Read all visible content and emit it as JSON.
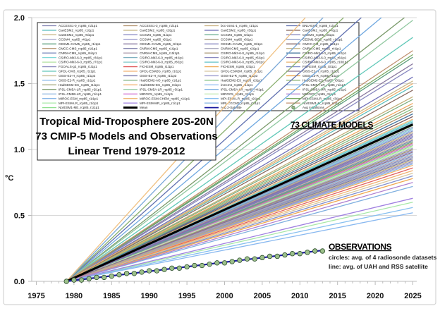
{
  "chart_data": {
    "type": "line",
    "title_lines": [
      "Tropical Mid-Troposphere 20S-20N",
      "73 CMIP-5 Models and Observations",
      "Linear Trend 1979-2012"
    ],
    "ylabel": "°C",
    "xlabel": "",
    "xlim": [
      1975,
      2025
    ],
    "ylim": [
      0.0,
      2.0
    ],
    "x_ticks": [
      "1975",
      "1980",
      "1985",
      "1990",
      "1995",
      "2000",
      "2005",
      "2010",
      "2015",
      "2020",
      "2025"
    ],
    "y_ticks": [
      "0.0",
      "0.5",
      "1.0",
      "1.5",
      "2.0"
    ],
    "grid": "horizontal",
    "legend_placement": "top-left",
    "annotations": {
      "models_label": "73 CLIMATE MODELS",
      "obs_title": "OBSERVATIONS",
      "obs_line1": "circles: avg. of 4 radiosonde datasets",
      "obs_line2": "line: avg. of UAH and RSS satellite"
    },
    "model_start_year": 1979,
    "model_end_year": 2025,
    "models": [
      {
        "name": "ACCESS1-0_rcp85_r1i1p1",
        "color": "#7f7fb0",
        "y_2025": 1.12
      },
      {
        "name": "CanESM2_rcp85_r1i1p1",
        "color": "#5fbfbf",
        "y_2025": 1.48
      },
      {
        "name": "CanESM2_rcp85_r5i1p1",
        "color": "#c3b07a",
        "y_2025": 1.4
      },
      {
        "name": "CCSM4_rcp85_r4i1p1",
        "color": "#a0a0c8",
        "y_2025": 1.01
      },
      {
        "name": "CESM1-CAM5_rcp85_r1i1p1",
        "color": "#5fa07f",
        "y_2025": 1.7
      },
      {
        "name": "CMCC-CMS_rcp85_r1i1p1",
        "color": "#b08f6a",
        "y_2025": 1.05
      },
      {
        "name": "CNRM-CM5_rcp85_r6i1p1",
        "color": "#7f8fc0",
        "y_2025": 0.95
      },
      {
        "name": "CSIRO-Mk3-6-0_rcp85_r3i1p1",
        "color": "#80d8d8",
        "y_2025": 1.22
      },
      {
        "name": "CSIRO-Mk3-6-0_rcp85_r7i1p1",
        "color": "#b0e0a0",
        "y_2025": 1.18
      },
      {
        "name": "FGOALS-g2_rcp85_r1i1p1",
        "color": "#9090c0",
        "y_2025": 0.91
      },
      {
        "name": "GFDL-CM3_rcp85_r1i1p1",
        "color": "#60c8b8",
        "y_2025": 1.85
      },
      {
        "name": "GISS-E2-H_rcp85_r1i1p2",
        "color": "#c8c09a",
        "y_2025": 1.08
      },
      {
        "name": "GISS-E2-R_rcp85_r1i1p1",
        "color": "#88b8e8",
        "y_2025": 0.89
      },
      {
        "name": "HadGEM2-ES_rcp85_r1i1p1",
        "color": "#9aa070",
        "y_2025": 1.33
      },
      {
        "name": "IPSL-CM5A-LR_rcp85_r2i1p1",
        "color": "#7a9a6a",
        "y_2025": 2.05
      },
      {
        "name": "IPSL-CM5B-LR_rcp85_r1i1p1",
        "color": "#90b8e0",
        "y_2025": 0.97
      },
      {
        "name": "MIROC-ESM_rcp85_r1i1p1",
        "color": "#8ab8e8",
        "y_2025": 1.15
      },
      {
        "name": "MPI-ESM-LR_rcp85_r1i1p1",
        "color": "#a8e8a8",
        "y_2025": 0.6
      },
      {
        "name": "NorESM1-ME_rcp85_r1i1p1",
        "color": "#90e090",
        "y_2025": 1.03
      },
      {
        "name": "ACCESS1-3_rcp85_r1i1p1",
        "color": "#b08f6a",
        "y_2025": 1.29
      },
      {
        "name": "CanESM2_rcp85_r2i1p1",
        "color": "#c8b888",
        "y_2025": 1.52
      },
      {
        "name": "CCSM4_rcp85_r1i1p1",
        "color": "#8080c0",
        "y_2025": 1.1
      },
      {
        "name": "CCSM4_rcp85_r5i1p1",
        "color": "#9090c8",
        "y_2025": 0.99
      },
      {
        "name": "CESM1-CAM5_rcp85_r2i1p1",
        "color": "#8a7aa0",
        "y_2025": 1.65
      },
      {
        "name": "CNRM-CM5_rcp85_r1i1p1",
        "color": "#7a7aa8",
        "y_2025": 0.93
      },
      {
        "name": "CNRM-CM5_rcp85_r10i1p1",
        "color": "#b0a0b0",
        "y_2025": 0.96
      },
      {
        "name": "CSIRO-Mk3-6-0_rcp85_r4i1p1",
        "color": "#7fb0c0",
        "y_2025": 1.2
      },
      {
        "name": "CSIRO-Mk3-6-0_rcp85_r8i1p1",
        "color": "#7fc8c8",
        "y_2025": 1.16
      },
      {
        "name": "FIO-ESM_rcp85_r1i1p1",
        "color": "#e06060",
        "y_2025": 0.86
      },
      {
        "name": "GFDL-ESM2G_rcp85_r1i1p1",
        "color": "#f0b070",
        "y_2025": 0.84
      },
      {
        "name": "GISS-E2-H_rcp85_r1i1p3",
        "color": "#8080b0",
        "y_2025": 1.07
      },
      {
        "name": "HadGEM2-AO_rcp85_r1i1p1",
        "color": "#80b080",
        "y_2025": 1.38
      },
      {
        "name": "HadGEM2-ES_rcp85_r4i1p1",
        "color": "#f0a860",
        "y_2025": 1.35
      },
      {
        "name": "IPSL-CM5A-LR_rcp85_r3i1p1",
        "color": "#90c8a0",
        "y_2025": 1.98
      },
      {
        "name": "MIROC5_rcp85_r1i1p1",
        "color": "#d070d0",
        "y_2025": 1.04
      },
      {
        "name": "MIROC-ESM-CHEM_rcp85_r1i1p1",
        "color": "#f0b878",
        "y_2025": 1.23
      },
      {
        "name": "MPI-ESM-MR_rcp85_r1i1p1",
        "color": "#a080e0",
        "y_2025": 0.63
      },
      {
        "name": "bcc-csm1-1_rcp85_r1i1p1",
        "color": "#c8b080",
        "y_2025": 1.13
      },
      {
        "name": "CanESM2_rcp85_r3i1p1",
        "color": "#7070b8",
        "y_2025": 1.55
      },
      {
        "name": "CCSM4_rcp85_r2i1p1",
        "color": "#60a888",
        "y_2025": 1.06
      },
      {
        "name": "CCSM4_rcp85_r6i1p1",
        "color": "#a09070",
        "y_2025": 1.0
      },
      {
        "name": "CESM1-CAM5_rcp85_r3i1p1",
        "color": "#8888c0",
        "y_2025": 1.62
      },
      {
        "name": "CNRM-CM5_rcp85_r2i1p1",
        "color": "#a0a0b8",
        "y_2025": 0.94
      },
      {
        "name": "CSIRO-Mk3-6-0_rcp85_r1i1p1",
        "color": "#b0a080",
        "y_2025": 1.19
      },
      {
        "name": "CSIRO-Mk3-6-0_rcp85_r5i1p1",
        "color": "#8a8ac0",
        "y_2025": 1.17
      },
      {
        "name": "CSIRO-Mk3-6-0_rcp85_r9i1p1",
        "color": "#60c0c8",
        "y_2025": 1.21
      },
      {
        "name": "FIO-ESM_rcp85_r2i1p1",
        "color": "#f0b060",
        "y_2025": 0.88
      },
      {
        "name": "GFDL-ESM2M_rcp85_r1i1p1",
        "color": "#d8c8a0",
        "y_2025": 0.82
      },
      {
        "name": "GISS-E2-R_rcp85_r1i1p3",
        "color": "#a0a0d0",
        "y_2025": 0.9
      },
      {
        "name": "HadGEM2-ES_rcp85_r2i1p1",
        "color": "#80c080",
        "y_2025": 1.31
      },
      {
        "name": "inmcm4_rcp85_r1i1p1",
        "color": "#88b8f0",
        "y_2025": 0.52
      },
      {
        "name": "IPSL-CM5A-LR_rcp85_r4i1p1",
        "color": "#70a8e0",
        "y_2025": 2.2
      },
      {
        "name": "MIROC5_rcp85_r2i1p1",
        "color": "#c0e8b0",
        "y_2025": 1.02
      },
      {
        "name": "MPI-ESM-LR_rcp85_r2i1p1",
        "color": "#88c0f0",
        "y_2025": 0.56
      },
      {
        "name": "MRI-CGCM3_rcp85_r1i1p1",
        "color": "#80b0e0",
        "y_2025": 0.72
      },
      {
        "name": "BNU-ESM_rcp85_r1i1p1",
        "color": "#6070b0",
        "y_2025": 2.35
      },
      {
        "name": "CanESM2_rcp85_r4i1p1",
        "color": "#8a6a60",
        "y_2025": 1.45
      },
      {
        "name": "CCSM4_rcp85_r3i1p1",
        "color": "#7a7ab8",
        "y_2025": 1.09
      },
      {
        "name": "CESM1-BGC_rcp85_r1i1p1",
        "color": "#8090c0",
        "y_2025": 1.14
      },
      {
        "name": "CMCC-CM_rcp85_r1i1p1",
        "color": "#806060",
        "y_2025": 1.25
      },
      {
        "name": "CNRM-CM5_rcp85_r4i1p1",
        "color": "#c0b080",
        "y_2025": 0.92
      },
      {
        "name": "CSIRO-Mk3-6-0_rcp85_r2i1p1",
        "color": "#4878a0",
        "y_2025": 1.27
      },
      {
        "name": "CSIRO-Mk3-6-0_rcp85_r6i1p1",
        "color": "#8a70a8",
        "y_2025": 1.11
      },
      {
        "name": "CSIRO-Mk3-6-0_rcp85_r10i1p1",
        "color": "#e8b070",
        "y_2025": 1.5
      },
      {
        "name": "FIO-ESM_rcp85_r3i1p1",
        "color": "#7f8fd0",
        "y_2025": 0.8
      },
      {
        "name": "GISS-E2-H_rcp85_r1i1p1",
        "color": "#8a7090",
        "y_2025": 0.98
      },
      {
        "name": "GISS-E2-R_rcp85_r1i1p2",
        "color": "#f0a850",
        "y_2025": 0.78
      },
      {
        "name": "HadGEM2-ES_rcp85_r3i1p1",
        "color": "#8ab070",
        "y_2025": 2.5
      },
      {
        "name": "IPSL-CM5A-LR_rcp85_r1i1p1",
        "color": "#7aa8d8",
        "y_2025": 2.7
      },
      {
        "name": "IPSL-CM5A-MR_rcp85_r1i1p1",
        "color": "#f0c080",
        "y_2025": 2.9
      },
      {
        "name": "MIROC5_rcp85_r3i1p1",
        "color": "#b080d0",
        "y_2025": 0.75
      },
      {
        "name": "MPI-ESM-LR_rcp85_r3i1p1",
        "color": "#78a860",
        "y_2025": 1.72
      },
      {
        "name": "NorESM1-M_rcp85_r1i1p1",
        "color": "#c09070",
        "y_2025": 1.75
      }
    ],
    "mean": {
      "name": "Mean",
      "color": "#000000",
      "y_2025": 1.19
    },
    "satellite": {
      "name": "Avg 2-Satellite",
      "color": "#1a1aa0",
      "x": [
        1979,
        2013
      ],
      "y": [
        0.0,
        0.235
      ]
    },
    "balloons": {
      "name": "Avg 4-Balloons",
      "color": "#9cc08a",
      "x": [
        1979,
        1980,
        1981,
        1982,
        1983,
        1984,
        1985,
        1986,
        1987,
        1988,
        1989,
        1990,
        1991,
        1992,
        1993,
        1994,
        1995,
        1996,
        1997,
        1998,
        1999,
        2000,
        2001,
        2002,
        2003,
        2004,
        2005,
        2006,
        2007,
        2008,
        2009,
        2010,
        2011,
        2012,
        2013
      ],
      "y": [
        0.0,
        0.01,
        0.01,
        0.02,
        0.03,
        0.03,
        0.04,
        0.05,
        0.06,
        0.06,
        0.07,
        0.08,
        0.08,
        0.09,
        0.1,
        0.1,
        0.11,
        0.12,
        0.12,
        0.13,
        0.14,
        0.14,
        0.15,
        0.16,
        0.17,
        0.17,
        0.18,
        0.19,
        0.19,
        0.2,
        0.21,
        0.21,
        0.22,
        0.23,
        0.23
      ]
    }
  }
}
